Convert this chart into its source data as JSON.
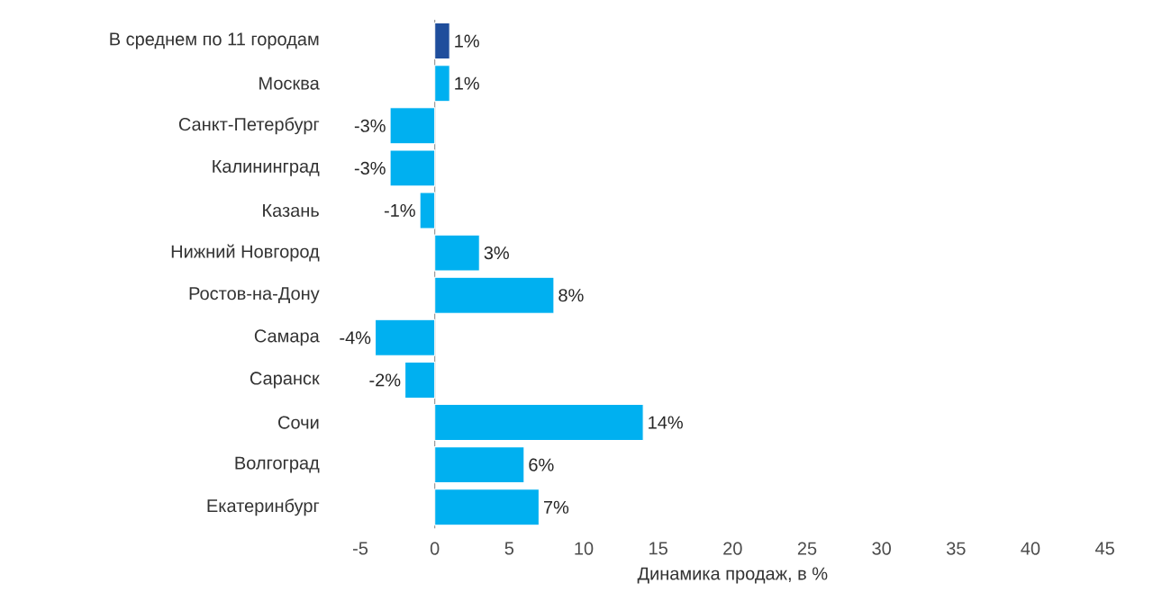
{
  "chart_data": {
    "type": "bar",
    "orientation": "horizontal",
    "xlabel": "Динамика продаж, в %",
    "categories": [
      "В среднем по 11 городам",
      "Москва",
      "Санкт-Петербург",
      "Калининград",
      "Казань",
      "Нижний Новгород",
      "Ростов-на-Дону",
      "Самара",
      "Саранск",
      "Сочи",
      "Волгоград",
      "Екатеринбург"
    ],
    "values": [
      1,
      1,
      -3,
      -3,
      -1,
      3,
      8,
      -4,
      -2,
      14,
      6,
      7
    ],
    "value_labels": [
      "1%",
      "1%",
      "-3%",
      "-3%",
      "-1%",
      "3%",
      "8%",
      "-4%",
      "-2%",
      "14%",
      "6%",
      "7%"
    ],
    "colors": [
      "#1f4e9c",
      "#00b0f0",
      "#00b0f0",
      "#00b0f0",
      "#00b0f0",
      "#00b0f0",
      "#00b0f0",
      "#00b0f0",
      "#00b0f0",
      "#00b0f0",
      "#00b0f0",
      "#00b0f0"
    ],
    "xlim": [
      -5,
      45
    ],
    "xticks": [
      -5,
      0,
      5,
      10,
      15,
      20,
      25,
      30,
      35,
      40,
      45
    ]
  }
}
